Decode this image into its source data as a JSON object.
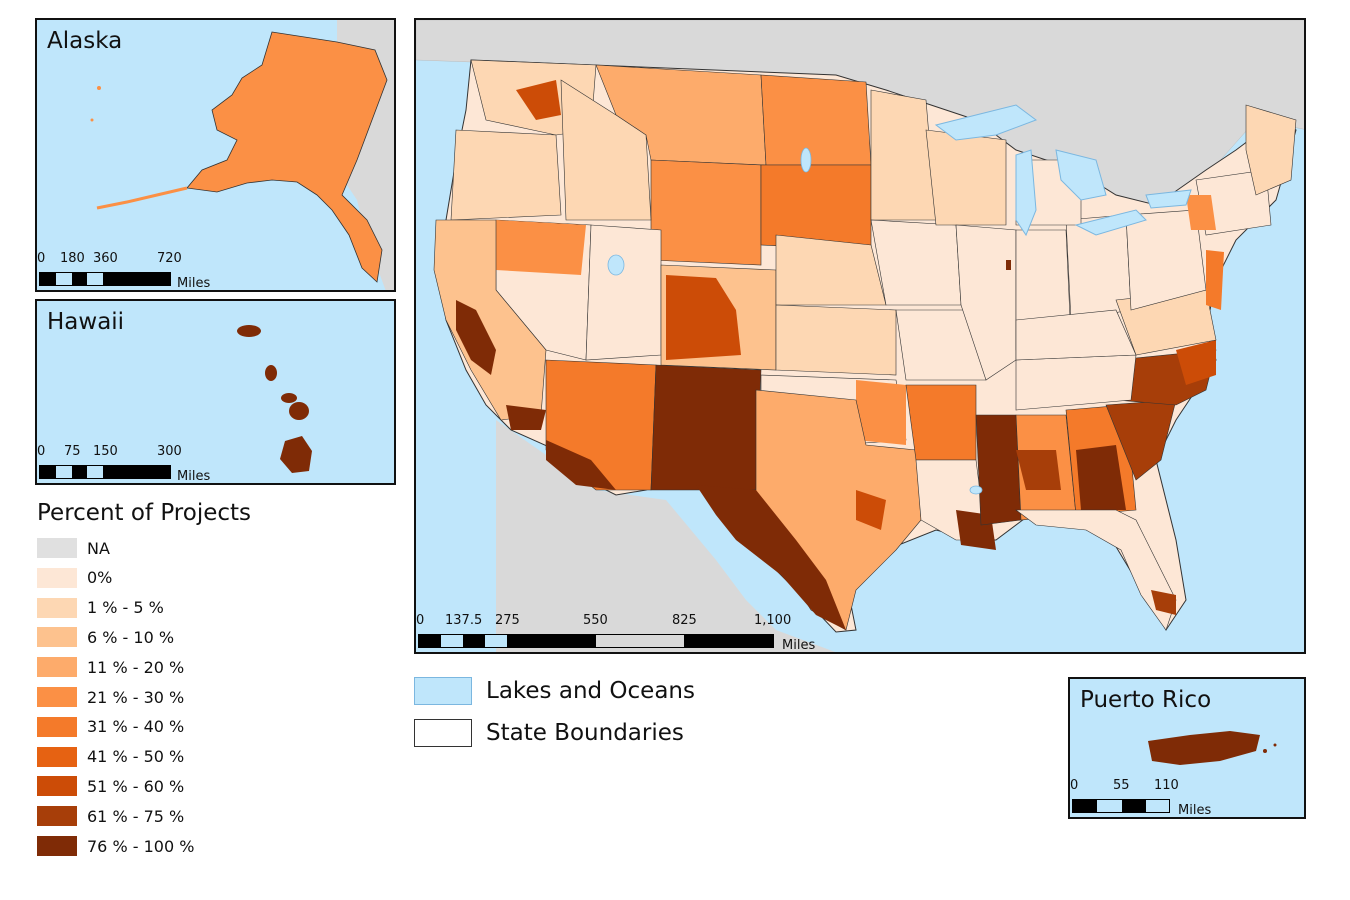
{
  "colors": {
    "water": "#bfe6fb",
    "land_other": "#d9d9d9",
    "state_line": "#333333",
    "lake_stroke": "#7bb7e0"
  },
  "insets": {
    "alaska": {
      "title": "Alaska",
      "scale_ticks": [
        "0",
        "180",
        "360",
        "720"
      ],
      "scale_unit": "Miles"
    },
    "hawaii": {
      "title": "Hawaii",
      "scale_ticks": [
        "0",
        "75",
        "150",
        "300"
      ],
      "scale_unit": "Miles"
    },
    "puerto_rico": {
      "title": "Puerto Rico",
      "scale_ticks": [
        "0",
        "55",
        "110"
      ],
      "scale_unit": "Miles"
    }
  },
  "main_map": {
    "scale_ticks": [
      "0",
      "137.5",
      "275",
      "550",
      "825",
      "1,100"
    ],
    "scale_unit": "Miles"
  },
  "legend": {
    "title": "Percent of Projects",
    "classes": [
      {
        "label": "NA",
        "color": "#e0e0e0"
      },
      {
        "label": "0%",
        "color": "#fde7d6"
      },
      {
        "label": "1 % - 5 %",
        "color": "#fdd7b3"
      },
      {
        "label": "6 % - 10 %",
        "color": "#fdc28e"
      },
      {
        "label": "11 % - 20 %",
        "color": "#fdab6b"
      },
      {
        "label": "21 % - 30 %",
        "color": "#fb9045"
      },
      {
        "label": "31 % - 40 %",
        "color": "#f47a2a"
      },
      {
        "label": "41 % - 50 %",
        "color": "#e66212"
      },
      {
        "label": "51 % - 60 %",
        "color": "#cc4c07"
      },
      {
        "label": "61 % - 75 %",
        "color": "#a73e09"
      },
      {
        "label": "76 % - 100 %",
        "color": "#7f2b06"
      }
    ]
  },
  "reference_legend": [
    {
      "label": "Lakes and Oceans",
      "swatch": "water"
    },
    {
      "label": "State Boundaries",
      "swatch": "boundary"
    }
  ]
}
